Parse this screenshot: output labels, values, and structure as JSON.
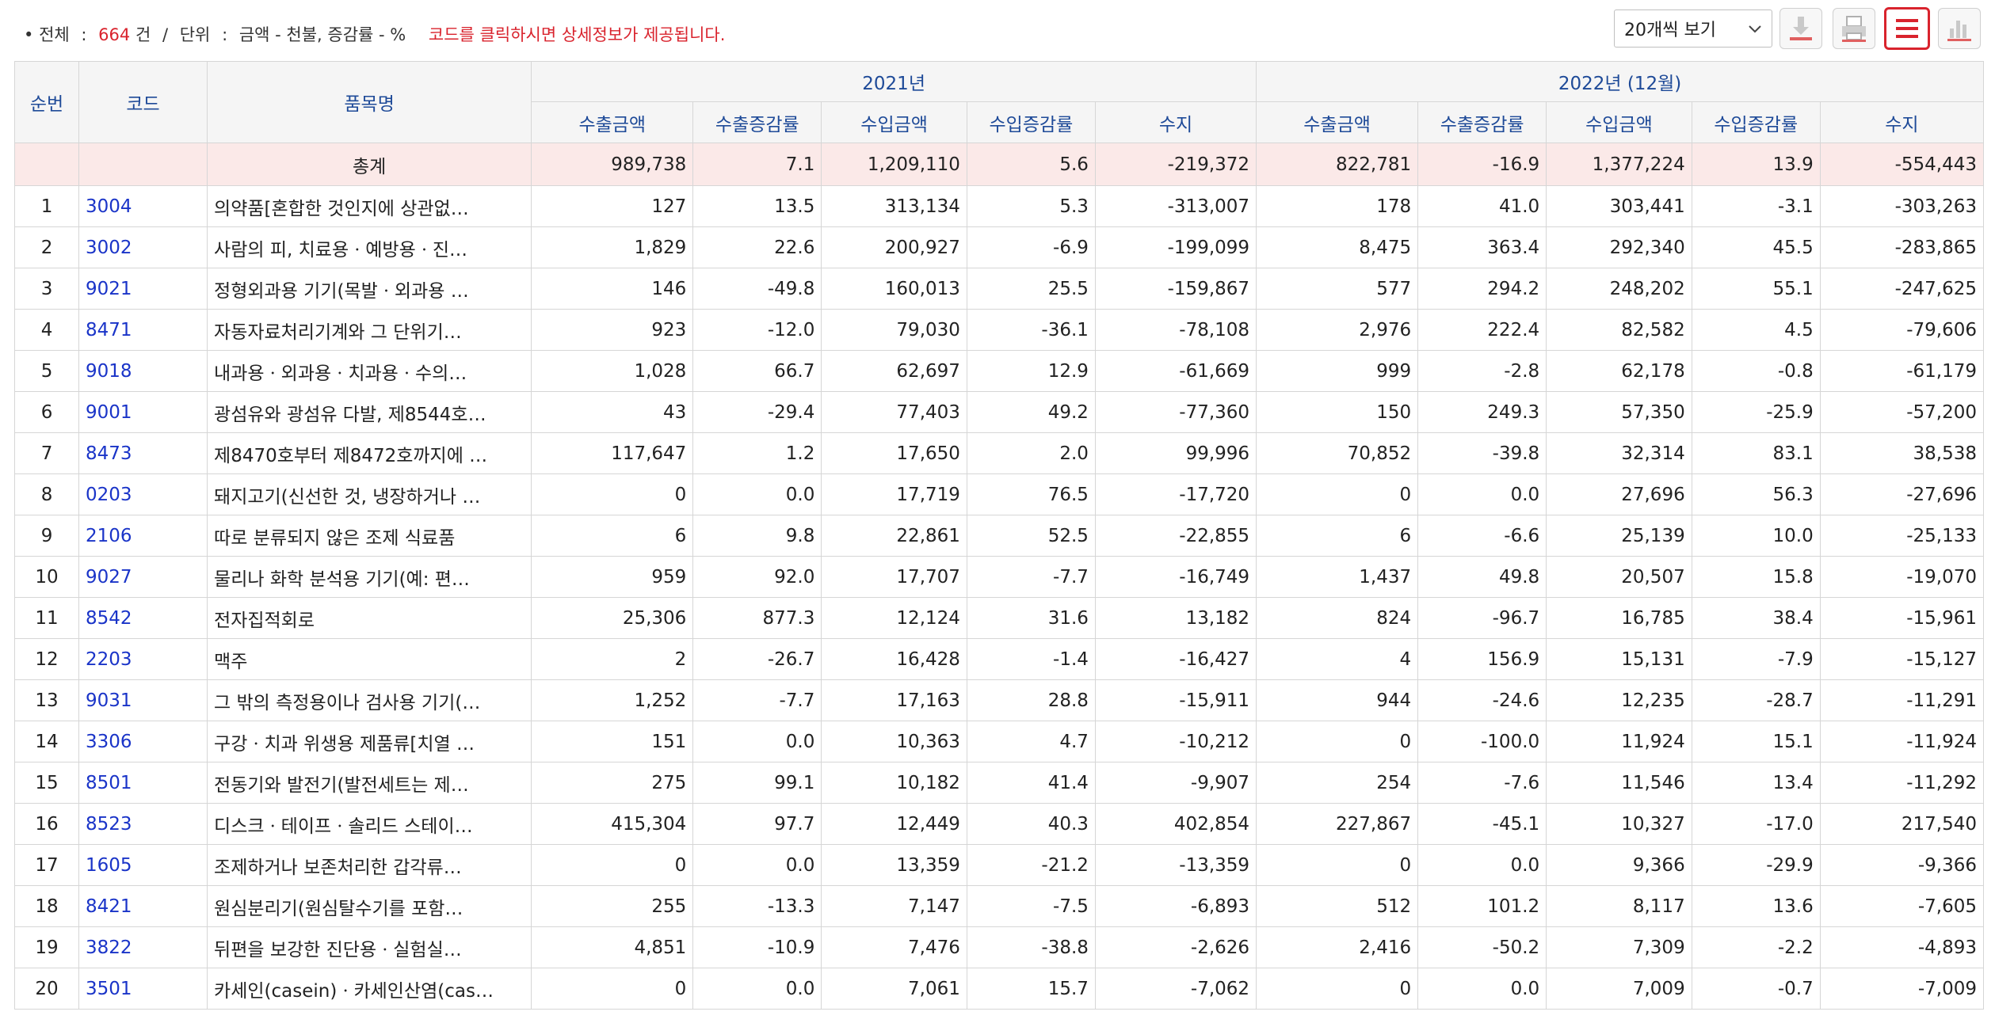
{
  "summary": {
    "bullet": "•",
    "total_label": "전체",
    "colon1": ":",
    "total_count": "664",
    "count_unit": "건",
    "slash": "/",
    "unit_label": "단위",
    "colon2": ":",
    "unit_value": "금액 - 천불, 증감률 - %",
    "notice": "코드를 클릭하시면 상세정보가 제공됩니다."
  },
  "page_size_select": {
    "value": "20개씩 보기"
  },
  "toolbar_icons": [
    "download-icon",
    "print-icon",
    "list-view-icon",
    "chart-view-icon"
  ],
  "colors": {
    "accent_red": "#d9232d",
    "header_blue": "#1e4a98",
    "link_blue": "#1a34c8",
    "total_row_bg": "#fbe9e8"
  },
  "table": {
    "headers": {
      "rank": "순번",
      "code": "코드",
      "name": "품목명",
      "year1": "2021년",
      "year2": "2022년 (12월)",
      "export_amount": "수출금액",
      "export_change": "수출증감률",
      "import_amount": "수입금액",
      "import_change": "수입증감률",
      "balance": "수지"
    },
    "total": {
      "label": "총계",
      "y2021": [
        "989,738",
        "7.1",
        "1,209,110",
        "5.6",
        "-219,372"
      ],
      "y2022": [
        "822,781",
        "-16.9",
        "1,377,224",
        "13.9",
        "-554,443"
      ]
    },
    "rows": [
      {
        "rank": "1",
        "code": "3004",
        "name": "의약품[혼합한 것인지에 상관없…",
        "y2021": [
          "127",
          "13.5",
          "313,134",
          "5.3",
          "-313,007"
        ],
        "y2022": [
          "178",
          "41.0",
          "303,441",
          "-3.1",
          "-303,263"
        ]
      },
      {
        "rank": "2",
        "code": "3002",
        "name": "사람의 피, 치료용ㆍ예방용ㆍ진…",
        "y2021": [
          "1,829",
          "22.6",
          "200,927",
          "-6.9",
          "-199,099"
        ],
        "y2022": [
          "8,475",
          "363.4",
          "292,340",
          "45.5",
          "-283,865"
        ]
      },
      {
        "rank": "3",
        "code": "9021",
        "name": "정형외과용 기기(목발ㆍ외과용 …",
        "y2021": [
          "146",
          "-49.8",
          "160,013",
          "25.5",
          "-159,867"
        ],
        "y2022": [
          "577",
          "294.2",
          "248,202",
          "55.1",
          "-247,625"
        ]
      },
      {
        "rank": "4",
        "code": "8471",
        "name": "자동자료처리기계와 그 단위기…",
        "y2021": [
          "923",
          "-12.0",
          "79,030",
          "-36.1",
          "-78,108"
        ],
        "y2022": [
          "2,976",
          "222.4",
          "82,582",
          "4.5",
          "-79,606"
        ]
      },
      {
        "rank": "5",
        "code": "9018",
        "name": "내과용ㆍ외과용ㆍ치과용ㆍ수의…",
        "y2021": [
          "1,028",
          "66.7",
          "62,697",
          "12.9",
          "-61,669"
        ],
        "y2022": [
          "999",
          "-2.8",
          "62,178",
          "-0.8",
          "-61,179"
        ]
      },
      {
        "rank": "6",
        "code": "9001",
        "name": "광섬유와 광섬유 다발, 제8544호…",
        "y2021": [
          "43",
          "-29.4",
          "77,403",
          "49.2",
          "-77,360"
        ],
        "y2022": [
          "150",
          "249.3",
          "57,350",
          "-25.9",
          "-57,200"
        ]
      },
      {
        "rank": "7",
        "code": "8473",
        "name": "제8470호부터 제8472호까지에 …",
        "y2021": [
          "117,647",
          "1.2",
          "17,650",
          "2.0",
          "99,996"
        ],
        "y2022": [
          "70,852",
          "-39.8",
          "32,314",
          "83.1",
          "38,538"
        ]
      },
      {
        "rank": "8",
        "code": "0203",
        "name": "돼지고기(신선한 것, 냉장하거나 …",
        "y2021": [
          "0",
          "0.0",
          "17,719",
          "76.5",
          "-17,720"
        ],
        "y2022": [
          "0",
          "0.0",
          "27,696",
          "56.3",
          "-27,696"
        ]
      },
      {
        "rank": "9",
        "code": "2106",
        "name": "따로 분류되지 않은 조제 식료품",
        "y2021": [
          "6",
          "9.8",
          "22,861",
          "52.5",
          "-22,855"
        ],
        "y2022": [
          "6",
          "-6.6",
          "25,139",
          "10.0",
          "-25,133"
        ]
      },
      {
        "rank": "10",
        "code": "9027",
        "name": "물리나 화학 분석용 기기(예: 편…",
        "y2021": [
          "959",
          "92.0",
          "17,707",
          "-7.7",
          "-16,749"
        ],
        "y2022": [
          "1,437",
          "49.8",
          "20,507",
          "15.8",
          "-19,070"
        ]
      },
      {
        "rank": "11",
        "code": "8542",
        "name": "전자집적회로",
        "y2021": [
          "25,306",
          "877.3",
          "12,124",
          "31.6",
          "13,182"
        ],
        "y2022": [
          "824",
          "-96.7",
          "16,785",
          "38.4",
          "-15,961"
        ]
      },
      {
        "rank": "12",
        "code": "2203",
        "name": "맥주",
        "y2021": [
          "2",
          "-26.7",
          "16,428",
          "-1.4",
          "-16,427"
        ],
        "y2022": [
          "4",
          "156.9",
          "15,131",
          "-7.9",
          "-15,127"
        ]
      },
      {
        "rank": "13",
        "code": "9031",
        "name": "그 밖의 측정용이나 검사용 기기(…",
        "y2021": [
          "1,252",
          "-7.7",
          "17,163",
          "28.8",
          "-15,911"
        ],
        "y2022": [
          "944",
          "-24.6",
          "12,235",
          "-28.7",
          "-11,291"
        ]
      },
      {
        "rank": "14",
        "code": "3306",
        "name": "구강ㆍ치과 위생용 제품류[치열 …",
        "y2021": [
          "151",
          "0.0",
          "10,363",
          "4.7",
          "-10,212"
        ],
        "y2022": [
          "0",
          "-100.0",
          "11,924",
          "15.1",
          "-11,924"
        ]
      },
      {
        "rank": "15",
        "code": "8501",
        "name": "전동기와 발전기(발전세트는 제…",
        "y2021": [
          "275",
          "99.1",
          "10,182",
          "41.4",
          "-9,907"
        ],
        "y2022": [
          "254",
          "-7.6",
          "11,546",
          "13.4",
          "-11,292"
        ]
      },
      {
        "rank": "16",
        "code": "8523",
        "name": "디스크ㆍ테이프ㆍ솔리드 스테이…",
        "y2021": [
          "415,304",
          "97.7",
          "12,449",
          "40.3",
          "402,854"
        ],
        "y2022": [
          "227,867",
          "-45.1",
          "10,327",
          "-17.0",
          "217,540"
        ]
      },
      {
        "rank": "17",
        "code": "1605",
        "name": "조제하거나 보존처리한 갑각류…",
        "y2021": [
          "0",
          "0.0",
          "13,359",
          "-21.2",
          "-13,359"
        ],
        "y2022": [
          "0",
          "0.0",
          "9,366",
          "-29.9",
          "-9,366"
        ]
      },
      {
        "rank": "18",
        "code": "8421",
        "name": "원심분리기(원심탈수기를 포함…",
        "y2021": [
          "255",
          "-13.3",
          "7,147",
          "-7.5",
          "-6,893"
        ],
        "y2022": [
          "512",
          "101.2",
          "8,117",
          "13.6",
          "-7,605"
        ]
      },
      {
        "rank": "19",
        "code": "3822",
        "name": "뒤편을 보강한 진단용ㆍ실험실…",
        "y2021": [
          "4,851",
          "-10.9",
          "7,476",
          "-38.8",
          "-2,626"
        ],
        "y2022": [
          "2,416",
          "-50.2",
          "7,309",
          "-2.2",
          "-4,893"
        ]
      },
      {
        "rank": "20",
        "code": "3501",
        "name": "카세인(casein)ㆍ카세인산염(cas…",
        "y2021": [
          "0",
          "0.0",
          "7,061",
          "15.7",
          "-7,062"
        ],
        "y2022": [
          "0",
          "0.0",
          "7,009",
          "-0.7",
          "-7,009"
        ]
      }
    ]
  }
}
